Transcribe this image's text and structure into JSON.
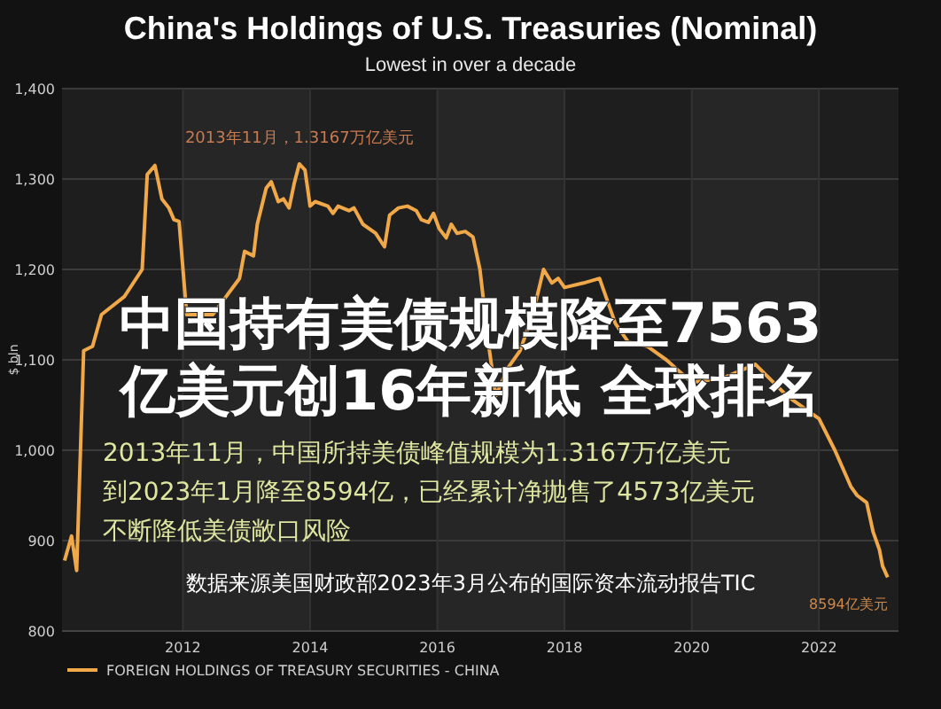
{
  "chart_data": {
    "type": "line",
    "title": "China's Holdings of U.S. Treasuries (Nominal)",
    "subtitle": "Lowest in over a decade",
    "ylabel": "$ bln",
    "xlim": [
      2010.1,
      2023.25
    ],
    "xticks": [
      2012,
      2014,
      2016,
      2018,
      2020,
      2022
    ],
    "ylim": [
      800,
      1400
    ],
    "yticks": [
      {
        "value": 800,
        "label": "800"
      },
      {
        "value": 900,
        "label": "900"
      },
      {
        "value": 1000,
        "label": "1,000"
      },
      {
        "value": 1100,
        "label": "1,100"
      },
      {
        "value": 1200,
        "label": "1,200"
      },
      {
        "value": 1300,
        "label": "1,300"
      },
      {
        "value": 1400,
        "label": "1,400"
      }
    ],
    "grid": true,
    "legend": "bottom",
    "marker": "none",
    "line_style": "solid",
    "series": [
      {
        "name": "FOREIGN HOLDINGS OF TREASURY SECURITIES - CHINA",
        "color": "#f0a848",
        "x": [
          2010.14,
          2010.25,
          2010.33,
          2010.39,
          2010.44,
          2010.58,
          2010.72,
          2011.08,
          2011.36,
          2011.44,
          2011.56,
          2011.67,
          2011.78,
          2011.86,
          2011.94,
          2012.06,
          2012.47,
          2012.89,
          2012.97,
          2013.11,
          2013.17,
          2013.31,
          2013.39,
          2013.5,
          2013.58,
          2013.67,
          2013.75,
          2013.83,
          2013.92,
          2014.0,
          2014.08,
          2014.28,
          2014.36,
          2014.44,
          2014.61,
          2014.69,
          2014.83,
          2015.03,
          2015.17,
          2015.25,
          2015.39,
          2015.53,
          2015.67,
          2015.75,
          2015.86,
          2015.94,
          2016.03,
          2016.14,
          2016.22,
          2016.31,
          2016.44,
          2016.56,
          2016.67,
          2016.8,
          2016.92,
          2017.1,
          2017.3,
          2017.5,
          2017.67,
          2017.8,
          2017.9,
          2018.0,
          2018.3,
          2018.55,
          2018.8,
          2019.0,
          2019.3,
          2019.6,
          2020.0,
          2020.5,
          2021.0,
          2021.5,
          2022.0,
          2022.25,
          2022.5,
          2022.6,
          2022.75,
          2022.85,
          2022.95,
          2023.0,
          2023.08
        ],
        "values": [
          878,
          905,
          867,
          1000,
          1110,
          1115,
          1150,
          1170,
          1200,
          1305,
          1315,
          1278,
          1268,
          1255,
          1253,
          1150,
          1150,
          1190,
          1220,
          1215,
          1250,
          1290,
          1297,
          1275,
          1278,
          1268,
          1295,
          1316.7,
          1310,
          1270,
          1275,
          1270,
          1262,
          1270,
          1265,
          1268,
          1250,
          1240,
          1225,
          1260,
          1268,
          1270,
          1265,
          1255,
          1252,
          1262,
          1245,
          1235,
          1250,
          1240,
          1242,
          1236,
          1200,
          1120,
          1060,
          1090,
          1110,
          1150,
          1200,
          1185,
          1190,
          1180,
          1185,
          1190,
          1140,
          1120,
          1115,
          1100,
          1075,
          1080,
          1095,
          1060,
          1035,
          1000,
          960,
          950,
          942,
          910,
          890,
          872,
          859.4
        ]
      }
    ],
    "annotations": [
      {
        "text": "2013年11月，1.3167万亿美元",
        "x": 2013.83,
        "y": 1316.7
      },
      {
        "text": "8594亿美元",
        "x": 2023.08,
        "y": 859.4
      },
      "中国持有美债规模降至7563",
      "亿美元创16年新低 全球排名",
      "2013年11月，中国所持美债峰值规模为1.3167万亿美元",
      "到2023年1月降至8594亿，已经累计净抛售了4573亿美元",
      "不断降低美债敞口风险",
      "数据来源美国财政部2023年3月公布的国际资本流动报告TIC"
    ]
  }
}
